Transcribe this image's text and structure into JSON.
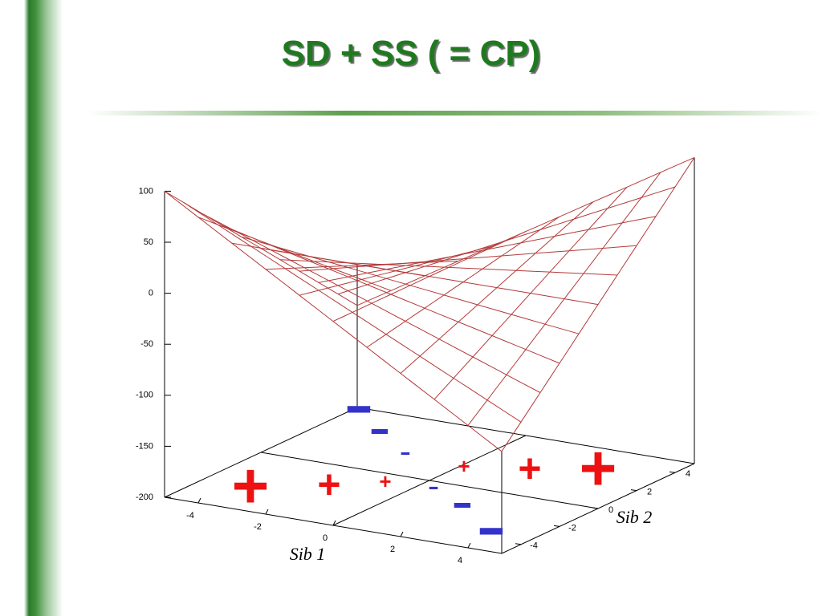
{
  "header": {
    "title": "SD + SS ( = CP)"
  },
  "plot": {
    "zticks": [
      100,
      50,
      0,
      -50,
      -100,
      -150,
      -200
    ],
    "xticks": [
      -4,
      -2,
      0,
      2,
      4
    ],
    "yticks": [
      -4,
      -2,
      0,
      2,
      4
    ],
    "xlabel": "Sib 1",
    "ylabel": "Sib 2",
    "markers": [
      "+",
      "+",
      "+",
      "+",
      "+",
      "+",
      "-",
      "-",
      "-",
      "-",
      "-",
      "-"
    ]
  }
}
